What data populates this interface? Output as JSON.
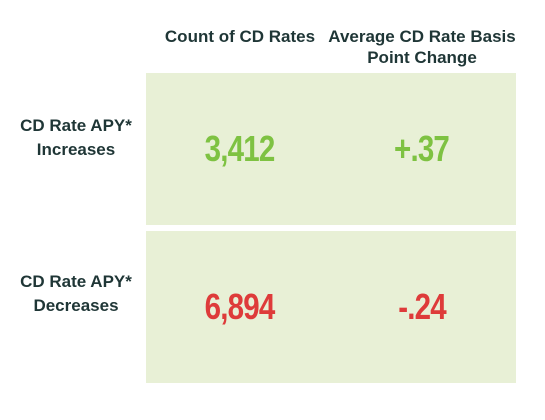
{
  "chart_data": {
    "type": "table",
    "columns": [
      "Count of CD Rates",
      "Average CD Rate Basis Point Change"
    ],
    "rows": [
      {
        "label": "CD Rate APY* Increases",
        "count": "3,412",
        "avg_change": "+.37",
        "color": "#7ec242"
      },
      {
        "label": "CD Rate APY* Decreases",
        "count": "6,894",
        "avg_change": "-.24",
        "color": "#de3b3a"
      }
    ]
  },
  "colors": {
    "cell_background": "#e8f0d6",
    "header_text": "#1f3636",
    "increase": "#7ec242",
    "decrease": "#de3b3a"
  }
}
